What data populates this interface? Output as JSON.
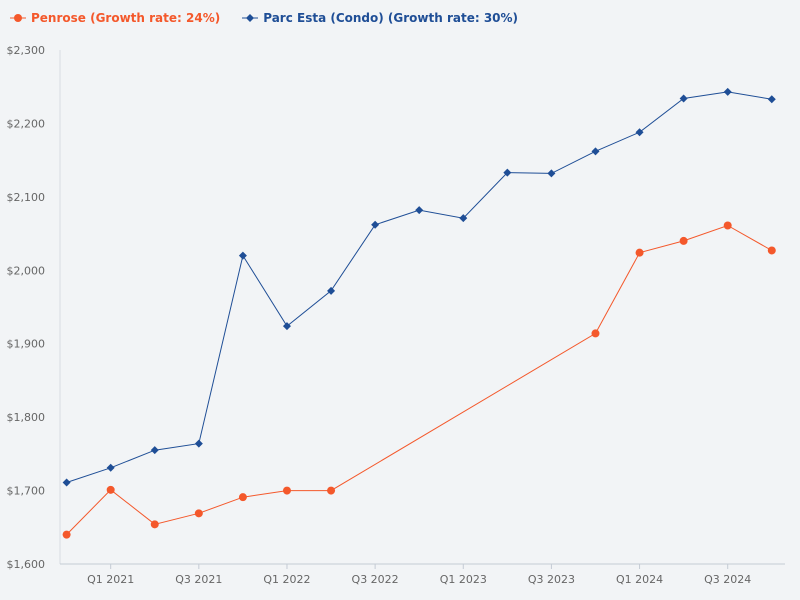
{
  "chart_data": {
    "type": "line",
    "title": "",
    "xlabel": "",
    "ylabel": "",
    "ylim": [
      1600,
      2300
    ],
    "y_ticks": [
      1600,
      1700,
      1800,
      1900,
      2000,
      2100,
      2200,
      2300
    ],
    "y_tick_labels": [
      "$1,600",
      "$1,700",
      "$1,800",
      "$1,900",
      "$2,000",
      "$2,100",
      "$2,200",
      "$2,300"
    ],
    "x_ticks": [
      1,
      3,
      5,
      7,
      9,
      11,
      13,
      15
    ],
    "x_tick_labels": [
      "Q1 2021",
      "Q3 2021",
      "Q1 2022",
      "Q3 2022",
      "Q1 2023",
      "Q3 2023",
      "Q1 2024",
      "Q3 2024"
    ],
    "grid": false,
    "legend_position": "top-left",
    "series": [
      {
        "name": "Penrose (Growth rate: 24%)",
        "color": "#f4582b",
        "marker": "circle",
        "x": [
          0,
          1,
          2,
          3,
          4,
          5,
          6,
          12,
          13,
          14,
          15,
          16
        ],
        "values": [
          1640,
          1701,
          1654,
          1669,
          1691,
          1700,
          1700,
          1914,
          2024,
          2040,
          2061,
          2027
        ]
      },
      {
        "name": "Parc Esta (Condo) (Growth rate: 30%)",
        "color": "#1f4e96",
        "marker": "diamond",
        "x": [
          0,
          1,
          2,
          3,
          4,
          5,
          6,
          7,
          8,
          9,
          10,
          11,
          12,
          13,
          14,
          15,
          16
        ],
        "values": [
          1711,
          1731,
          1755,
          1764,
          2020,
          1924,
          1972,
          2062,
          2082,
          2071,
          2133,
          2132,
          2162,
          2188,
          2234,
          2243,
          2233
        ]
      }
    ]
  }
}
